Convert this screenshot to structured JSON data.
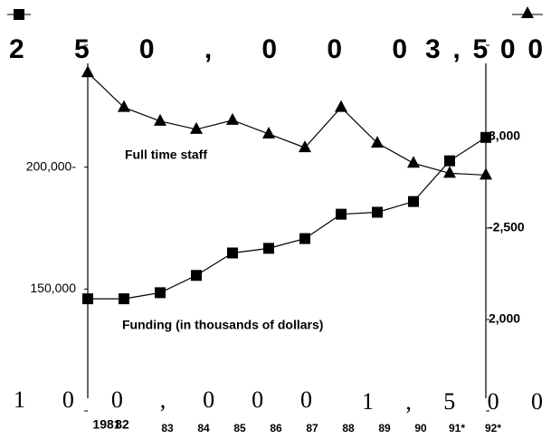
{
  "chart_data": {
    "type": "line",
    "categories": [
      "1981",
      "82",
      "83",
      "84",
      "85",
      "86",
      "87",
      "88",
      "89",
      "90",
      "91*",
      "92*"
    ],
    "series": [
      {
        "name": "Funding (in thousands of dollars)",
        "color": "#000000",
        "marker": "square",
        "values": [
          146000,
          146000,
          148500,
          155600,
          164800,
          166700,
          170700,
          180700,
          181500,
          185900,
          202600,
          212200
        ]
      },
      {
        "name": "Full time staff",
        "color": "#000000",
        "marker": "triangle",
        "axis": "y2",
        "values": [
          3350,
          3160,
          3085,
          3040,
          3090,
          3015,
          2940,
          3160,
          2965,
          2855,
          2800,
          2790
        ]
      }
    ],
    "ylim": [
      100000,
      250000
    ],
    "yticks": [
      {
        "value": 100000,
        "label": "100,000"
      },
      {
        "value": 150000,
        "label": "150,000"
      },
      {
        "value": 200000,
        "label": "200,000-"
      },
      {
        "value": 250000,
        "label": "250,000"
      }
    ],
    "y2lim": [
      1500,
      3500
    ],
    "y2ticks": [
      {
        "value": 1500,
        "label": "1,500"
      },
      {
        "value": 2000,
        "label": "2,000"
      },
      {
        "value": 2500,
        "label": "-2,500"
      },
      {
        "value": 3000,
        "label": "3,000"
      },
      {
        "value": 3500,
        "label": "3,500"
      }
    ],
    "grid": false
  }
}
